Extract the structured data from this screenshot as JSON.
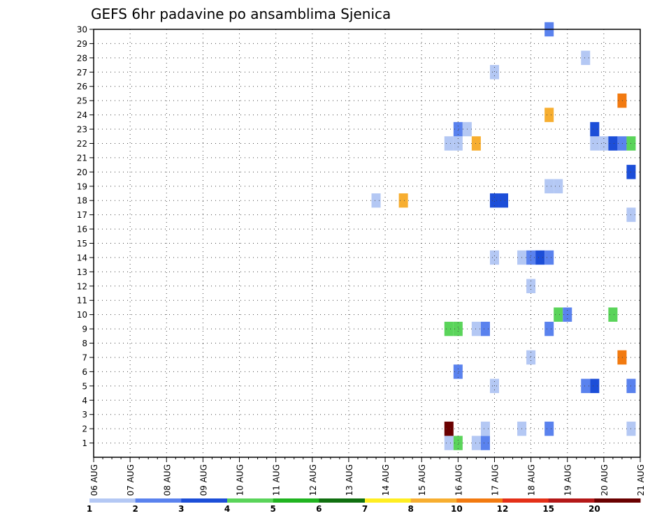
{
  "chart_data": {
    "type": "heatmap",
    "title": "GEFS 6hr padavine po ansamblima Sjenica",
    "xlabel": "",
    "ylabel": "",
    "x_ticks": [
      "06 AUG",
      "07 AUG",
      "08 AUG",
      "09 AUG",
      "10 AUG",
      "11 AUG",
      "12 AUG",
      "13 AUG",
      "14 AUG",
      "15 AUG",
      "16 AUG",
      "17 AUG",
      "18 AUG",
      "19 AUG",
      "20 AUG",
      "21 AUG"
    ],
    "y_ticks": [
      "1",
      "2",
      "3",
      "4",
      "5",
      "6",
      "7",
      "8",
      "9",
      "10",
      "11",
      "12",
      "13",
      "14",
      "15",
      "16",
      "17",
      "18",
      "19",
      "20",
      "21",
      "22",
      "23",
      "24",
      "25",
      "26",
      "27",
      "28",
      "29",
      "30"
    ],
    "x_range": [
      "06 AUG 00Z",
      "21 AUG 00Z"
    ],
    "y_range": [
      0,
      30
    ],
    "grid": true,
    "colorbar": {
      "position": "bottom",
      "labels": [
        "1",
        "2",
        "3",
        "4",
        "5",
        "6",
        "7",
        "8",
        "10",
        "12",
        "15",
        "20"
      ],
      "colors": [
        "#b4c8f4",
        "#5a82ee",
        "#1c4ed8",
        "#5ad45a",
        "#20b420",
        "#107010",
        "#ffee22",
        "#f7ae30",
        "#f27a10",
        "#e43018",
        "#b41818",
        "#6a0000"
      ]
    },
    "cells": [
      {
        "time": "15 AUG 18Z",
        "member": "1",
        "color": "#b4c8f4"
      },
      {
        "time": "16 AUG 00Z",
        "member": "1",
        "color": "#5ad45a"
      },
      {
        "time": "16 AUG 12Z",
        "member": "1",
        "color": "#b4c8f4"
      },
      {
        "time": "16 AUG 18Z",
        "member": "1",
        "color": "#5a82ee"
      },
      {
        "time": "15 AUG 18Z",
        "member": "2",
        "color": "#6a0000"
      },
      {
        "time": "16 AUG 18Z",
        "member": "2",
        "color": "#b4c8f4"
      },
      {
        "time": "17 AUG 18Z",
        "member": "2",
        "color": "#b4c8f4"
      },
      {
        "time": "18 AUG 12Z",
        "member": "2",
        "color": "#5a82ee"
      },
      {
        "time": "20 AUG 18Z",
        "member": "2",
        "color": "#b4c8f4"
      },
      {
        "time": "17 AUG 00Z",
        "member": "5",
        "color": "#b4c8f4"
      },
      {
        "time": "19 AUG 12Z",
        "member": "5",
        "color": "#5a82ee"
      },
      {
        "time": "19 AUG 18Z",
        "member": "5",
        "color": "#1c4ed8"
      },
      {
        "time": "20 AUG 18Z",
        "member": "5",
        "color": "#5a82ee"
      },
      {
        "time": "16 AUG 00Z",
        "member": "6",
        "color": "#5a82ee"
      },
      {
        "time": "18 AUG 00Z",
        "member": "7",
        "color": "#b4c8f4"
      },
      {
        "time": "20 AUG 12Z",
        "member": "7",
        "color": "#f27a10"
      },
      {
        "time": "15 AUG 18Z",
        "member": "9",
        "color": "#5ad45a"
      },
      {
        "time": "16 AUG 00Z",
        "member": "9",
        "color": "#5ad45a"
      },
      {
        "time": "16 AUG 12Z",
        "member": "9",
        "color": "#b4c8f4"
      },
      {
        "time": "16 AUG 18Z",
        "member": "9",
        "color": "#5a82ee"
      },
      {
        "time": "18 AUG 12Z",
        "member": "9",
        "color": "#5a82ee"
      },
      {
        "time": "18 AUG 18Z",
        "member": "10",
        "color": "#5ad45a"
      },
      {
        "time": "19 AUG 00Z",
        "member": "10",
        "color": "#5a82ee"
      },
      {
        "time": "20 AUG 06Z",
        "member": "10",
        "color": "#5ad45a"
      },
      {
        "time": "18 AUG 00Z",
        "member": "12",
        "color": "#b4c8f4"
      },
      {
        "time": "17 AUG 00Z",
        "member": "14",
        "color": "#b4c8f4"
      },
      {
        "time": "17 AUG 18Z",
        "member": "14",
        "color": "#b4c8f4"
      },
      {
        "time": "18 AUG 00Z",
        "member": "14",
        "color": "#5a82ee"
      },
      {
        "time": "18 AUG 06Z",
        "member": "14",
        "color": "#1c4ed8"
      },
      {
        "time": "18 AUG 12Z",
        "member": "14",
        "color": "#5a82ee"
      },
      {
        "time": "20 AUG 18Z",
        "member": "17",
        "color": "#b4c8f4"
      },
      {
        "time": "13 AUG 18Z",
        "member": "18",
        "color": "#b4c8f4"
      },
      {
        "time": "14 AUG 12Z",
        "member": "18",
        "color": "#f7ae30"
      },
      {
        "time": "17 AUG 00Z",
        "member": "18",
        "color": "#1c4ed8"
      },
      {
        "time": "17 AUG 06Z",
        "member": "18",
        "color": "#1c4ed8"
      },
      {
        "time": "18 AUG 12Z",
        "member": "19",
        "color": "#b4c8f4"
      },
      {
        "time": "18 AUG 18Z",
        "member": "19",
        "color": "#b4c8f4"
      },
      {
        "time": "20 AUG 18Z",
        "member": "20",
        "color": "#1c4ed8"
      },
      {
        "time": "15 AUG 18Z",
        "member": "22",
        "color": "#b4c8f4"
      },
      {
        "time": "16 AUG 00Z",
        "member": "22",
        "color": "#b4c8f4"
      },
      {
        "time": "16 AUG 12Z",
        "member": "22",
        "color": "#f7ae30"
      },
      {
        "time": "19 AUG 18Z",
        "member": "22",
        "color": "#b4c8f4"
      },
      {
        "time": "20 AUG 00Z",
        "member": "22",
        "color": "#b4c8f4"
      },
      {
        "time": "20 AUG 06Z",
        "member": "22",
        "color": "#1c4ed8"
      },
      {
        "time": "20 AUG 12Z",
        "member": "22",
        "color": "#5a82ee"
      },
      {
        "time": "20 AUG 18Z",
        "member": "22",
        "color": "#5ad45a"
      },
      {
        "time": "16 AUG 00Z",
        "member": "23",
        "color": "#5a82ee"
      },
      {
        "time": "16 AUG 06Z",
        "member": "23",
        "color": "#b4c8f4"
      },
      {
        "time": "19 AUG 18Z",
        "member": "23",
        "color": "#1c4ed8"
      },
      {
        "time": "18 AUG 12Z",
        "member": "24",
        "color": "#f7ae30"
      },
      {
        "time": "20 AUG 12Z",
        "member": "25",
        "color": "#f27a10"
      },
      {
        "time": "17 AUG 00Z",
        "member": "27",
        "color": "#b4c8f4"
      },
      {
        "time": "19 AUG 12Z",
        "member": "28",
        "color": "#b4c8f4"
      },
      {
        "time": "18 AUG 12Z",
        "member": "30",
        "color": "#5a82ee"
      }
    ]
  }
}
